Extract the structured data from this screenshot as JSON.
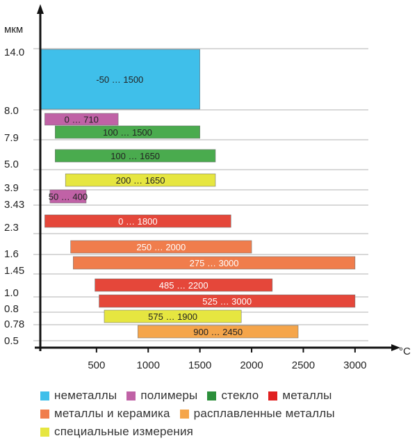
{
  "chart_data": {
    "type": "bar",
    "orientation": "horizontal-range",
    "y_unit": "мкм",
    "x_unit": "°C",
    "x_ticks": [
      500,
      1000,
      1500,
      2000,
      2500,
      3000
    ],
    "xlim": [
      -50,
      3200
    ],
    "y_labels": [
      "14.0",
      "8.0",
      "7.9",
      "5.0",
      "3.9",
      "3.43",
      "2.3",
      "1.6",
      "1.45",
      "1.0",
      "0.8",
      "0.78",
      "0.5"
    ],
    "grid": "horizontal",
    "colors": {
      "nonmetals": "#3fbfea",
      "polymers": "#c062a6",
      "glass": "#4aab4e",
      "metals": "#e5473a",
      "metals_ceramics": "#f07d4c",
      "molten_metals": "#f5a54a",
      "special": "#e6e640"
    },
    "bars": [
      {
        "start": -50,
        "end": 1500,
        "label": "-50 … 1500",
        "category": "nonmetals"
      },
      {
        "start": 0,
        "end": 710,
        "label": "0 … 710",
        "category": "polymers"
      },
      {
        "start": 100,
        "end": 1500,
        "label": "100 … 1500",
        "category": "glass"
      },
      {
        "start": 100,
        "end": 1650,
        "label": "100 … 1650",
        "category": "glass"
      },
      {
        "start": 200,
        "end": 1650,
        "label": "200 … 1650",
        "category": "special"
      },
      {
        "start": 50,
        "end": 400,
        "label": "50 … 400",
        "category": "polymers"
      },
      {
        "start": 0,
        "end": 1800,
        "label": "0 … 1800",
        "category": "metals"
      },
      {
        "start": 250,
        "end": 2000,
        "label": "250 … 2000",
        "category": "metals_ceramics"
      },
      {
        "start": 275,
        "end": 3000,
        "label": "275 … 3000",
        "category": "metals_ceramics"
      },
      {
        "start": 485,
        "end": 2200,
        "label": "485 … 2200",
        "category": "metals"
      },
      {
        "start": 525,
        "end": 3000,
        "label": "525 … 3000",
        "category": "metals"
      },
      {
        "start": 575,
        "end": 1900,
        "label": "575 … 1900",
        "category": "special"
      },
      {
        "start": 900,
        "end": 2450,
        "label": "900 … 2450",
        "category": "molten_metals"
      }
    ]
  },
  "legend": {
    "rows": [
      [
        {
          "label": "неметаллы",
          "color": "#3fbfea"
        },
        {
          "label": "полимеры",
          "color": "#c062a6"
        },
        {
          "label": "стекло",
          "color": "#2c8f3b"
        },
        {
          "label": "металлы",
          "color": "#e02020"
        }
      ],
      [
        {
          "label": "металлы и керамика",
          "color": "#f07d4c"
        },
        {
          "label": "расплавленные металлы",
          "color": "#f5a54a"
        }
      ],
      [
        {
          "label": "специальные измерения",
          "color": "#e6e640"
        }
      ]
    ]
  }
}
